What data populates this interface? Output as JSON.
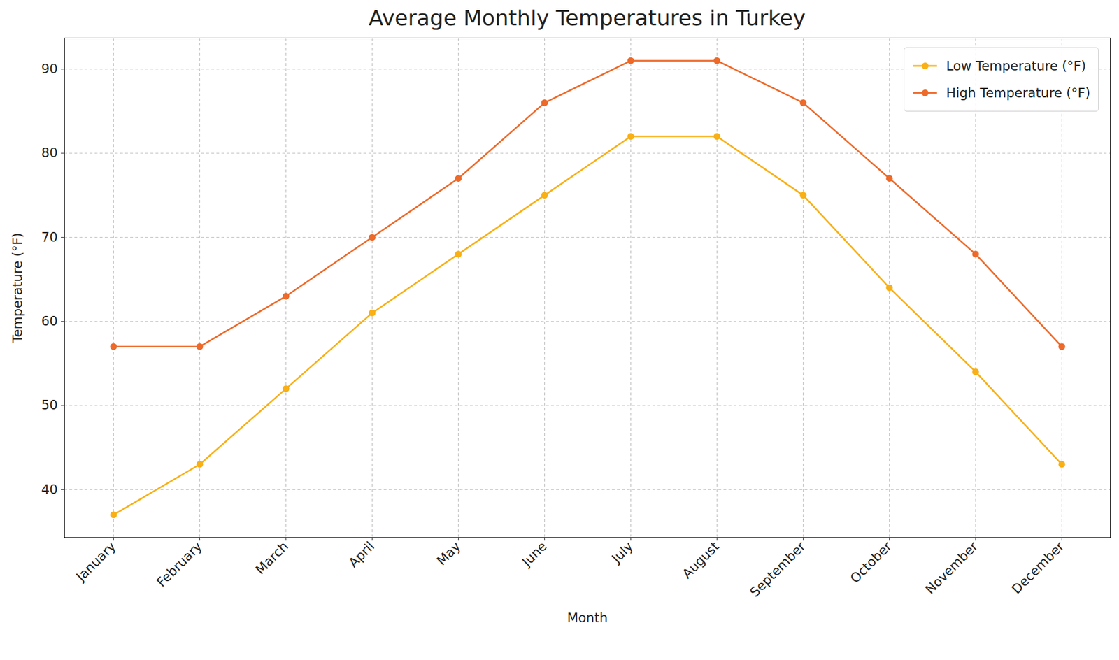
{
  "chart_data": {
    "type": "line",
    "title": "Average Monthly Temperatures in Turkey",
    "x_label": "Month",
    "y_label": "Temperature (°F)",
    "categories": [
      "January",
      "February",
      "March",
      "April",
      "May",
      "June",
      "July",
      "August",
      "September",
      "October",
      "November",
      "December"
    ],
    "series": [
      {
        "name": "Low Temperature (°F)",
        "color": "#f9b015",
        "marker": "o",
        "values": [
          37,
          43,
          52,
          61,
          68,
          75,
          82,
          82,
          75,
          64,
          54,
          43
        ]
      },
      {
        "name": "High Temperature (°F)",
        "color": "#ee6a2a",
        "marker": "o",
        "values": [
          57,
          57,
          63,
          70,
          77,
          86,
          91,
          91,
          86,
          77,
          68,
          57
        ]
      }
    ],
    "ylim": [
      34.3,
      93.7
    ],
    "yticks": [
      40,
      50,
      60,
      70,
      80,
      90
    ],
    "grid": true,
    "legend": "upper right"
  }
}
